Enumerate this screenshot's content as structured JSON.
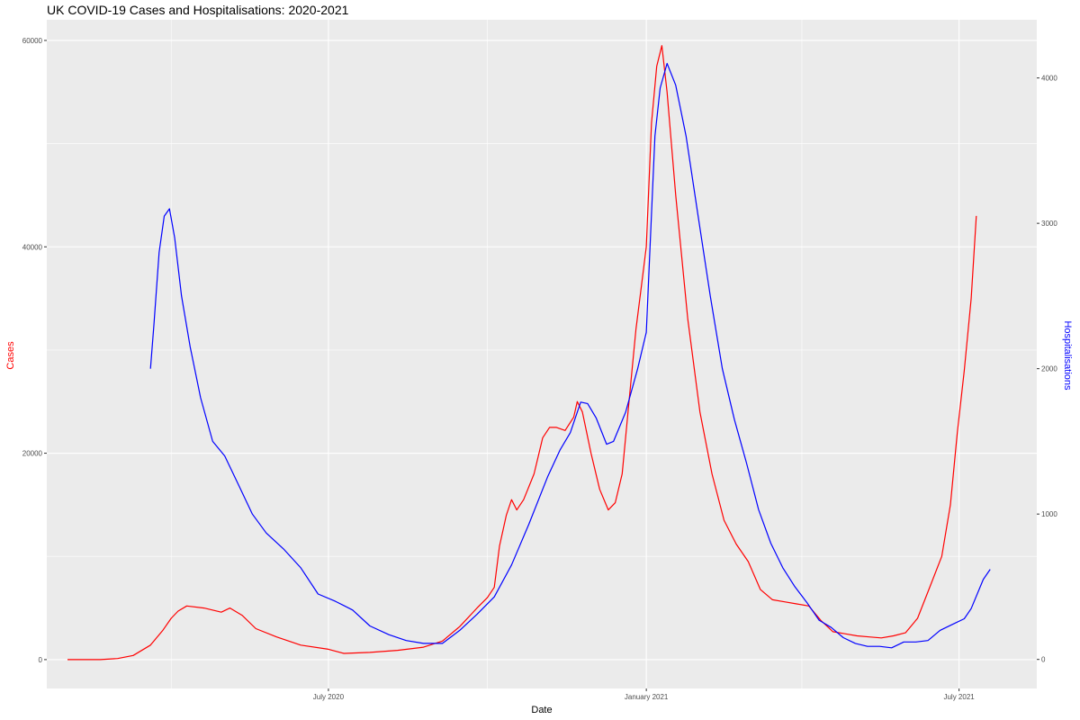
{
  "chart_data": {
    "type": "line",
    "title": "UK COVID-19 Cases and Hospitalisations: 2020-2021",
    "xlabel": "Date",
    "ylabel_left": "Cases",
    "ylabel_right": "Hospitalisations",
    "xlim": [
      "2020-01-20",
      "2021-08-15"
    ],
    "ylim_left": [
      -2800,
      62000
    ],
    "ylim_right": [
      -200,
      4400
    ],
    "x_ticks": [
      "2020-07-01",
      "2021-01-01",
      "2021-07-01"
    ],
    "x_tick_labels": [
      "July 2020",
      "January 2021",
      "July 2021"
    ],
    "y_left_ticks": [
      0,
      20000,
      40000,
      60000
    ],
    "y_right_ticks": [
      0,
      1000,
      2000,
      3000,
      4000
    ],
    "grid": true,
    "colors": {
      "panel": "#ebebeb",
      "grid": "#ffffff",
      "cases": "#ff0000",
      "hospitalisations": "#0000ff"
    },
    "series": [
      {
        "name": "Cases",
        "axis": "left",
        "color": "#ff0000",
        "points": [
          [
            "2020-02-01",
            0
          ],
          [
            "2020-02-20",
            0
          ],
          [
            "2020-03-01",
            100
          ],
          [
            "2020-03-10",
            400
          ],
          [
            "2020-03-20",
            1400
          ],
          [
            "2020-03-27",
            2800
          ],
          [
            "2020-04-01",
            4000
          ],
          [
            "2020-04-05",
            4700
          ],
          [
            "2020-04-10",
            5200
          ],
          [
            "2020-04-20",
            5000
          ],
          [
            "2020-04-30",
            4600
          ],
          [
            "2020-05-05",
            5000
          ],
          [
            "2020-05-12",
            4300
          ],
          [
            "2020-05-20",
            3000
          ],
          [
            "2020-06-01",
            2200
          ],
          [
            "2020-06-15",
            1400
          ],
          [
            "2020-07-01",
            1000
          ],
          [
            "2020-07-10",
            600
          ],
          [
            "2020-07-25",
            700
          ],
          [
            "2020-08-10",
            900
          ],
          [
            "2020-08-25",
            1200
          ],
          [
            "2020-09-05",
            1800
          ],
          [
            "2020-09-15",
            3200
          ],
          [
            "2020-09-25",
            5000
          ],
          [
            "2020-10-01",
            6000
          ],
          [
            "2020-10-05",
            7000
          ],
          [
            "2020-10-08",
            11000
          ],
          [
            "2020-10-12",
            14000
          ],
          [
            "2020-10-15",
            15500
          ],
          [
            "2020-10-18",
            14500
          ],
          [
            "2020-10-22",
            15500
          ],
          [
            "2020-10-28",
            18000
          ],
          [
            "2020-11-02",
            21500
          ],
          [
            "2020-11-06",
            22500
          ],
          [
            "2020-11-10",
            22500
          ],
          [
            "2020-11-15",
            22200
          ],
          [
            "2020-11-20",
            23500
          ],
          [
            "2020-11-22",
            25000
          ],
          [
            "2020-11-25",
            24000
          ],
          [
            "2020-11-30",
            20000
          ],
          [
            "2020-12-05",
            16500
          ],
          [
            "2020-12-10",
            14500
          ],
          [
            "2020-12-14",
            15200
          ],
          [
            "2020-12-18",
            18000
          ],
          [
            "2020-12-22",
            25000
          ],
          [
            "2020-12-26",
            32000
          ],
          [
            "2020-12-29",
            36000
          ],
          [
            "2021-01-01",
            40000
          ],
          [
            "2021-01-04",
            52000
          ],
          [
            "2021-01-07",
            57500
          ],
          [
            "2021-01-10",
            59500
          ],
          [
            "2021-01-13",
            55000
          ],
          [
            "2021-01-18",
            45000
          ],
          [
            "2021-01-25",
            33000
          ],
          [
            "2021-02-01",
            24000
          ],
          [
            "2021-02-08",
            18000
          ],
          [
            "2021-02-15",
            13500
          ],
          [
            "2021-02-22",
            11200
          ],
          [
            "2021-03-01",
            9500
          ],
          [
            "2021-03-08",
            6800
          ],
          [
            "2021-03-15",
            5800
          ],
          [
            "2021-03-22",
            5600
          ],
          [
            "2021-03-29",
            5400
          ],
          [
            "2021-04-05",
            5200
          ],
          [
            "2021-04-12",
            3800
          ],
          [
            "2021-04-19",
            2700
          ],
          [
            "2021-04-26",
            2500
          ],
          [
            "2021-05-03",
            2300
          ],
          [
            "2021-05-10",
            2200
          ],
          [
            "2021-05-17",
            2100
          ],
          [
            "2021-05-24",
            2300
          ],
          [
            "2021-05-31",
            2600
          ],
          [
            "2021-06-07",
            4000
          ],
          [
            "2021-06-14",
            7000
          ],
          [
            "2021-06-21",
            10000
          ],
          [
            "2021-06-26",
            15000
          ],
          [
            "2021-06-30",
            22000
          ],
          [
            "2021-07-04",
            28000
          ],
          [
            "2021-07-08",
            35000
          ],
          [
            "2021-07-11",
            43000
          ]
        ]
      },
      {
        "name": "Hospitalisations",
        "axis": "right",
        "color": "#0000ff",
        "points": [
          [
            "2020-03-20",
            2000
          ],
          [
            "2020-03-22",
            2300
          ],
          [
            "2020-03-25",
            2800
          ],
          [
            "2020-03-28",
            3050
          ],
          [
            "2020-03-31",
            3100
          ],
          [
            "2020-04-03",
            2900
          ],
          [
            "2020-04-07",
            2500
          ],
          [
            "2020-04-12",
            2150
          ],
          [
            "2020-04-18",
            1800
          ],
          [
            "2020-04-25",
            1500
          ],
          [
            "2020-05-02",
            1400
          ],
          [
            "2020-05-10",
            1200
          ],
          [
            "2020-05-18",
            1000
          ],
          [
            "2020-05-26",
            870
          ],
          [
            "2020-06-05",
            760
          ],
          [
            "2020-06-15",
            630
          ],
          [
            "2020-06-25",
            450
          ],
          [
            "2020-07-05",
            400
          ],
          [
            "2020-07-15",
            340
          ],
          [
            "2020-07-25",
            230
          ],
          [
            "2020-08-05",
            170
          ],
          [
            "2020-08-15",
            130
          ],
          [
            "2020-08-25",
            110
          ],
          [
            "2020-09-05",
            110
          ],
          [
            "2020-09-15",
            200
          ],
          [
            "2020-09-25",
            310
          ],
          [
            "2020-10-05",
            430
          ],
          [
            "2020-10-15",
            650
          ],
          [
            "2020-10-25",
            930
          ],
          [
            "2020-11-05",
            1260
          ],
          [
            "2020-11-12",
            1440
          ],
          [
            "2020-11-18",
            1560
          ],
          [
            "2020-11-24",
            1770
          ],
          [
            "2020-11-28",
            1760
          ],
          [
            "2020-12-03",
            1660
          ],
          [
            "2020-12-09",
            1480
          ],
          [
            "2020-12-13",
            1500
          ],
          [
            "2020-12-20",
            1700
          ],
          [
            "2020-12-27",
            2000
          ],
          [
            "2021-01-01",
            2250
          ],
          [
            "2021-01-06",
            3600
          ],
          [
            "2021-01-09",
            3930
          ],
          [
            "2021-01-13",
            4100
          ],
          [
            "2021-01-18",
            3950
          ],
          [
            "2021-01-24",
            3600
          ],
          [
            "2021-01-31",
            3050
          ],
          [
            "2021-02-07",
            2500
          ],
          [
            "2021-02-14",
            2000
          ],
          [
            "2021-02-21",
            1650
          ],
          [
            "2021-02-28",
            1350
          ],
          [
            "2021-03-07",
            1030
          ],
          [
            "2021-03-14",
            800
          ],
          [
            "2021-03-21",
            630
          ],
          [
            "2021-03-28",
            500
          ],
          [
            "2021-04-04",
            390
          ],
          [
            "2021-04-11",
            270
          ],
          [
            "2021-04-18",
            220
          ],
          [
            "2021-04-25",
            150
          ],
          [
            "2021-05-02",
            110
          ],
          [
            "2021-05-09",
            90
          ],
          [
            "2021-05-16",
            90
          ],
          [
            "2021-05-23",
            80
          ],
          [
            "2021-05-30",
            120
          ],
          [
            "2021-06-06",
            120
          ],
          [
            "2021-06-13",
            130
          ],
          [
            "2021-06-20",
            200
          ],
          [
            "2021-06-27",
            240
          ],
          [
            "2021-07-04",
            280
          ],
          [
            "2021-07-08",
            350
          ],
          [
            "2021-07-15",
            550
          ],
          [
            "2021-07-19",
            620
          ]
        ]
      }
    ]
  }
}
